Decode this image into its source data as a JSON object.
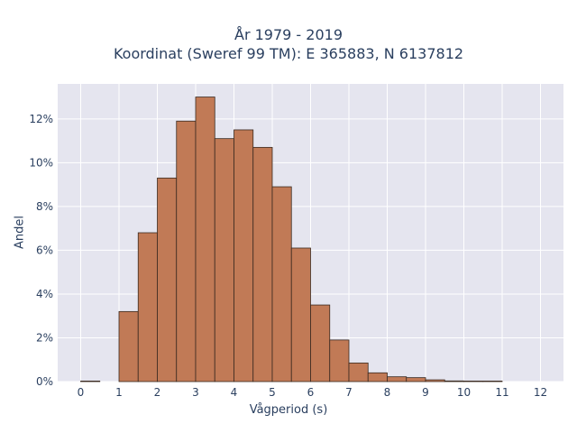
{
  "chart_data": {
    "type": "bar",
    "title": "År 1979 - 2019",
    "subtitle": "Koordinat (Sweref 99 TM): E 365883, N 6137812",
    "xlabel": "Vågperiod (s)",
    "ylabel": "Andel",
    "bin_width": 0.5,
    "bins_start": [
      0,
      1,
      1.5,
      2,
      2.5,
      3,
      3.5,
      4,
      4.5,
      5,
      5.5,
      6,
      6.5,
      7,
      7.5,
      8,
      8.5,
      9,
      9.5,
      10,
      10.5
    ],
    "values": [
      0.02,
      3.2,
      6.8,
      9.3,
      11.9,
      13.0,
      11.1,
      11.5,
      10.7,
      8.9,
      6.1,
      3.5,
      1.9,
      0.85,
      0.4,
      0.22,
      0.18,
      0.08,
      0.03,
      0.02,
      0.01
    ],
    "xlim": [
      -0.6,
      12.6
    ],
    "ylim": [
      0,
      13.6
    ],
    "x_ticks": [
      0,
      1,
      2,
      3,
      4,
      5,
      6,
      7,
      8,
      9,
      10,
      11,
      12
    ],
    "y_ticks": [
      0,
      2,
      4,
      6,
      8,
      10,
      12
    ],
    "y_tick_suffix": "%",
    "bar_color": "#c17a56",
    "bar_edge": "#3a2a20",
    "plot_bg": "#e5e5ef",
    "grid": true
  }
}
